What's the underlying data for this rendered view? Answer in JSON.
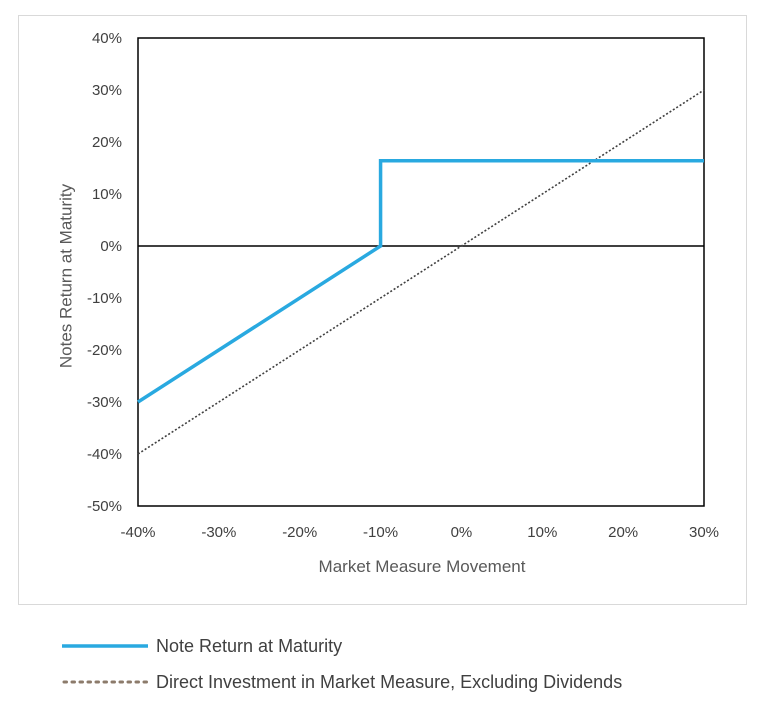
{
  "chart_data": {
    "type": "line",
    "xlabel": "Market Measure Movement",
    "ylabel": "Notes Return at Maturity",
    "xlim": [
      -40,
      30
    ],
    "ylim": [
      -50,
      40
    ],
    "x_ticks": [
      "-40%",
      "-30%",
      "-20%",
      "-10%",
      "0%",
      "10%",
      "20%",
      "30%"
    ],
    "y_ticks": [
      "40%",
      "30%",
      "20%",
      "10%",
      "0%",
      "-10%",
      "-20%",
      "-30%",
      "-40%",
      "-50%"
    ],
    "grid": false,
    "legend_position": "bottom",
    "series": [
      {
        "name": "Note Return at Maturity",
        "color": "#29a9e0",
        "style": "solid",
        "x": [
          -40,
          -10,
          -10,
          30
        ],
        "y": [
          -30,
          0,
          16.4,
          16.4
        ]
      },
      {
        "name": "Direct Investment in Market Measure, Excluding Dividends",
        "color": "#404040",
        "legend_color": "#8c7b6b",
        "style": "dotted",
        "x": [
          -40,
          30
        ],
        "y": [
          -40,
          30
        ]
      }
    ]
  }
}
